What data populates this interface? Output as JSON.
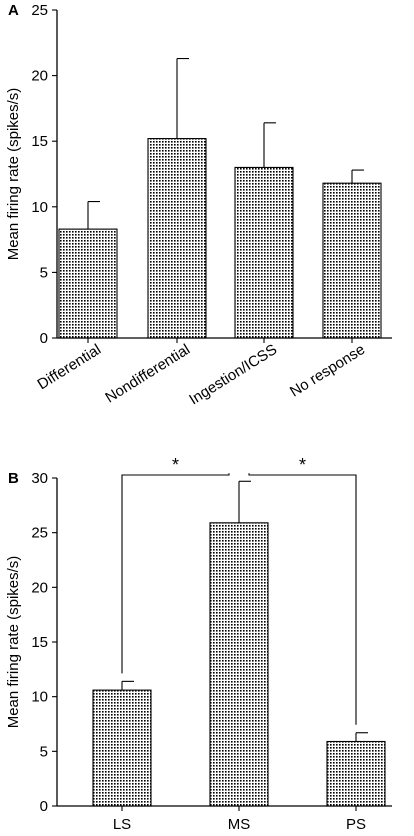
{
  "chart_data": [
    {
      "panel": "A",
      "type": "bar",
      "ylabel": "Mean firing rate (spikes/s)",
      "ylim": [
        0,
        25
      ],
      "yticks": [
        0,
        5,
        10,
        15,
        20,
        25
      ],
      "categories": [
        "Differential",
        "Nondifferential",
        "Ingestion/ICSS",
        "No response"
      ],
      "values": [
        8.3,
        15.2,
        13.0,
        11.8
      ],
      "errors": [
        2.1,
        6.1,
        3.4,
        1.0
      ]
    },
    {
      "panel": "B",
      "type": "bar",
      "ylabel": "Mean firing rate (spikes/s)",
      "ylim": [
        0,
        30
      ],
      "yticks": [
        0,
        5,
        10,
        15,
        20,
        25,
        30
      ],
      "categories": [
        "LS",
        "MS",
        "PS"
      ],
      "values": [
        10.6,
        25.9,
        5.9
      ],
      "errors": [
        0.8,
        3.8,
        0.8
      ],
      "significance": [
        {
          "from": "LS",
          "to": "MS",
          "label": "*"
        },
        {
          "from": "MS",
          "to": "PS",
          "label": "*"
        }
      ]
    }
  ]
}
